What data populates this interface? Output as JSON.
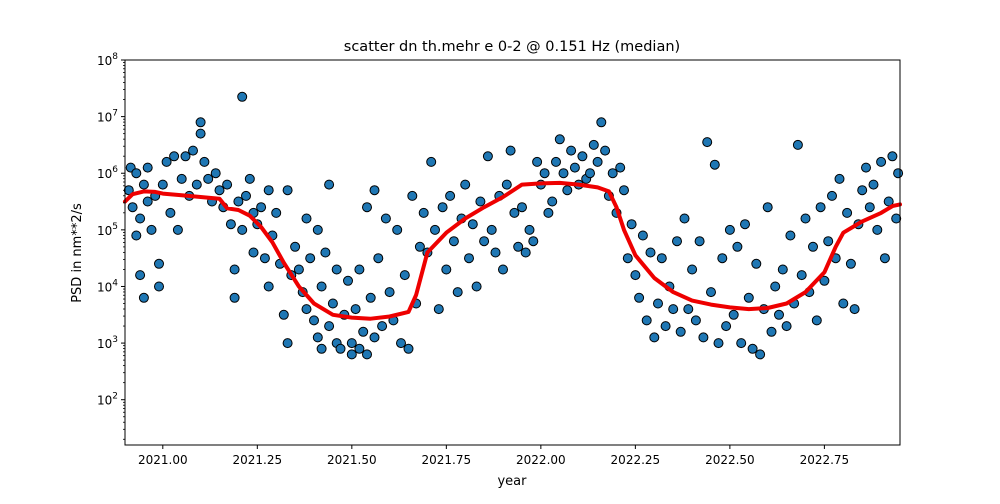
{
  "chart_data": {
    "type": "scatter",
    "title": "scatter dn th.mehr e 0-2 @ 0.151 Hz (median)",
    "xlabel": "year",
    "ylabel": "PSD in nm**2/s",
    "xlim": [
      2020.9,
      2022.95
    ],
    "ylim_log10": [
      1.2,
      8.0
    ],
    "y_scale": "log",
    "grid": false,
    "x_ticks": [
      2021.0,
      2021.25,
      2021.5,
      2021.75,
      2022.0,
      2022.25,
      2022.5,
      2022.75
    ],
    "x_tick_labels": [
      "2021.00",
      "2021.25",
      "2021.50",
      "2021.75",
      "2022.00",
      "2022.25",
      "2022.50",
      "2022.75"
    ],
    "y_tick_exponents": [
      2,
      3,
      4,
      5,
      6,
      7,
      8
    ],
    "y_tick_base": "10",
    "colors": {
      "points": "#1f77b4",
      "point_edge": "#000000",
      "median": "#ee0000"
    },
    "series": [
      {
        "kind": "scatter",
        "values": [
          [
            2020.91,
            5.7
          ],
          [
            2020.915,
            6.1
          ],
          [
            2020.92,
            5.4
          ],
          [
            2020.93,
            4.9
          ],
          [
            2020.93,
            6.0
          ],
          [
            2020.94,
            5.2
          ],
          [
            2020.94,
            4.2
          ],
          [
            2020.95,
            5.8
          ],
          [
            2020.95,
            3.8
          ],
          [
            2020.96,
            5.5
          ],
          [
            2020.96,
            6.1
          ],
          [
            2020.97,
            5.0
          ],
          [
            2020.98,
            5.6
          ],
          [
            2020.99,
            4.4
          ],
          [
            2020.99,
            4.0
          ],
          [
            2021.0,
            5.8
          ],
          [
            2021.01,
            6.2
          ],
          [
            2021.02,
            5.3
          ],
          [
            2021.03,
            6.3
          ],
          [
            2021.04,
            5.0
          ],
          [
            2021.05,
            5.9
          ],
          [
            2021.06,
            6.3
          ],
          [
            2021.07,
            5.6
          ],
          [
            2021.08,
            6.4
          ],
          [
            2021.09,
            5.8
          ],
          [
            2021.1,
            6.7
          ],
          [
            2021.1,
            6.9
          ],
          [
            2021.11,
            6.2
          ],
          [
            2021.12,
            5.9
          ],
          [
            2021.13,
            5.5
          ],
          [
            2021.14,
            6.0
          ],
          [
            2021.15,
            5.7
          ],
          [
            2021.16,
            5.4
          ],
          [
            2021.17,
            5.8
          ],
          [
            2021.18,
            5.1
          ],
          [
            2021.19,
            4.3
          ],
          [
            2021.19,
            3.8
          ],
          [
            2021.21,
            7.35
          ],
          [
            2021.2,
            5.5
          ],
          [
            2021.21,
            5.0
          ],
          [
            2021.22,
            5.6
          ],
          [
            2021.23,
            5.9
          ],
          [
            2021.24,
            5.3
          ],
          [
            2021.24,
            4.6
          ],
          [
            2021.25,
            5.1
          ],
          [
            2021.26,
            5.4
          ],
          [
            2021.27,
            4.5
          ],
          [
            2021.28,
            5.7
          ],
          [
            2021.28,
            4.0
          ],
          [
            2021.29,
            4.9
          ],
          [
            2021.3,
            5.3
          ],
          [
            2021.31,
            4.4
          ],
          [
            2021.32,
            3.5
          ],
          [
            2021.33,
            5.7
          ],
          [
            2021.33,
            3.0
          ],
          [
            2021.34,
            4.2
          ],
          [
            2021.35,
            4.7
          ],
          [
            2021.36,
            4.3
          ],
          [
            2021.37,
            3.9
          ],
          [
            2021.38,
            5.2
          ],
          [
            2021.38,
            3.6
          ],
          [
            2021.39,
            4.5
          ],
          [
            2021.4,
            3.4
          ],
          [
            2021.41,
            5.0
          ],
          [
            2021.41,
            3.1
          ],
          [
            2021.42,
            4.0
          ],
          [
            2021.42,
            2.9
          ],
          [
            2021.43,
            4.6
          ],
          [
            2021.44,
            3.3
          ],
          [
            2021.44,
            5.8
          ],
          [
            2021.45,
            3.7
          ],
          [
            2021.46,
            3.0
          ],
          [
            2021.46,
            4.3
          ],
          [
            2021.47,
            2.9
          ],
          [
            2021.48,
            3.5
          ],
          [
            2021.49,
            4.1
          ],
          [
            2021.5,
            3.0
          ],
          [
            2021.5,
            2.8
          ],
          [
            2021.51,
            3.6
          ],
          [
            2021.52,
            2.9
          ],
          [
            2021.52,
            4.3
          ],
          [
            2021.53,
            3.2
          ],
          [
            2021.54,
            5.4
          ],
          [
            2021.54,
            2.8
          ],
          [
            2021.55,
            3.8
          ],
          [
            2021.56,
            3.1
          ],
          [
            2021.56,
            5.7
          ],
          [
            2021.57,
            4.5
          ],
          [
            2021.58,
            3.3
          ],
          [
            2021.59,
            5.2
          ],
          [
            2021.6,
            3.9
          ],
          [
            2021.61,
            3.4
          ],
          [
            2021.62,
            5.0
          ],
          [
            2021.63,
            3.0
          ],
          [
            2021.64,
            4.2
          ],
          [
            2021.65,
            2.9
          ],
          [
            2021.66,
            5.6
          ],
          [
            2021.67,
            3.7
          ],
          [
            2021.68,
            4.7
          ],
          [
            2021.69,
            5.3
          ],
          [
            2021.7,
            4.6
          ],
          [
            2021.71,
            6.2
          ],
          [
            2021.72,
            5.0
          ],
          [
            2021.73,
            3.6
          ],
          [
            2021.74,
            5.4
          ],
          [
            2021.75,
            4.3
          ],
          [
            2021.76,
            5.6
          ],
          [
            2021.77,
            4.8
          ],
          [
            2021.78,
            3.9
          ],
          [
            2021.79,
            5.2
          ],
          [
            2021.8,
            5.8
          ],
          [
            2021.81,
            4.5
          ],
          [
            2021.82,
            5.1
          ],
          [
            2021.83,
            4.0
          ],
          [
            2021.84,
            5.5
          ],
          [
            2021.85,
            4.8
          ],
          [
            2021.86,
            6.3
          ],
          [
            2021.87,
            5.0
          ],
          [
            2021.88,
            4.6
          ],
          [
            2021.89,
            5.6
          ],
          [
            2021.9,
            4.3
          ],
          [
            2021.91,
            5.8
          ],
          [
            2021.92,
            6.4
          ],
          [
            2021.93,
            5.3
          ],
          [
            2021.94,
            4.7
          ],
          [
            2021.95,
            5.4
          ],
          [
            2021.96,
            4.6
          ],
          [
            2021.97,
            5.0
          ],
          [
            2021.98,
            4.8
          ],
          [
            2021.99,
            6.2
          ],
          [
            2022.0,
            5.8
          ],
          [
            2022.01,
            6.0
          ],
          [
            2022.02,
            5.3
          ],
          [
            2022.03,
            5.5
          ],
          [
            2022.04,
            6.2
          ],
          [
            2022.05,
            6.6
          ],
          [
            2022.06,
            6.0
          ],
          [
            2022.07,
            5.7
          ],
          [
            2022.08,
            6.4
          ],
          [
            2022.09,
            6.1
          ],
          [
            2022.1,
            5.8
          ],
          [
            2022.11,
            6.3
          ],
          [
            2022.12,
            5.9
          ],
          [
            2022.13,
            6.0
          ],
          [
            2022.14,
            6.5
          ],
          [
            2022.15,
            6.2
          ],
          [
            2022.16,
            6.9
          ],
          [
            2022.17,
            6.4
          ],
          [
            2022.18,
            5.6
          ],
          [
            2022.19,
            6.0
          ],
          [
            2022.2,
            5.3
          ],
          [
            2022.21,
            6.1
          ],
          [
            2022.22,
            5.7
          ],
          [
            2022.23,
            4.5
          ],
          [
            2022.24,
            5.1
          ],
          [
            2022.25,
            4.2
          ],
          [
            2022.26,
            3.8
          ],
          [
            2022.27,
            4.9
          ],
          [
            2022.28,
            3.4
          ],
          [
            2022.29,
            4.6
          ],
          [
            2022.3,
            3.1
          ],
          [
            2022.31,
            3.7
          ],
          [
            2022.32,
            4.5
          ],
          [
            2022.33,
            3.3
          ],
          [
            2022.34,
            4.0
          ],
          [
            2022.35,
            3.6
          ],
          [
            2022.36,
            4.8
          ],
          [
            2022.37,
            3.2
          ],
          [
            2022.38,
            5.2
          ],
          [
            2022.39,
            3.6
          ],
          [
            2022.4,
            4.3
          ],
          [
            2022.41,
            3.4
          ],
          [
            2022.42,
            4.8
          ],
          [
            2022.43,
            3.1
          ],
          [
            2022.44,
            6.55
          ],
          [
            2022.45,
            3.9
          ],
          [
            2022.46,
            6.15
          ],
          [
            2022.47,
            3.0
          ],
          [
            2022.48,
            4.5
          ],
          [
            2022.49,
            3.3
          ],
          [
            2022.5,
            5.0
          ],
          [
            2022.51,
            3.5
          ],
          [
            2022.52,
            4.7
          ],
          [
            2022.53,
            3.0
          ],
          [
            2022.54,
            5.1
          ],
          [
            2022.55,
            3.8
          ],
          [
            2022.56,
            2.9
          ],
          [
            2022.57,
            4.4
          ],
          [
            2022.58,
            2.8
          ],
          [
            2022.59,
            3.6
          ],
          [
            2022.6,
            5.4
          ],
          [
            2022.61,
            3.2
          ],
          [
            2022.62,
            4.0
          ],
          [
            2022.63,
            3.5
          ],
          [
            2022.64,
            4.3
          ],
          [
            2022.65,
            3.3
          ],
          [
            2022.66,
            4.9
          ],
          [
            2022.67,
            3.7
          ],
          [
            2022.68,
            6.5
          ],
          [
            2022.69,
            4.2
          ],
          [
            2022.7,
            5.2
          ],
          [
            2022.71,
            3.9
          ],
          [
            2022.72,
            4.7
          ],
          [
            2022.73,
            3.4
          ],
          [
            2022.74,
            5.4
          ],
          [
            2022.75,
            4.1
          ],
          [
            2022.76,
            4.8
          ],
          [
            2022.77,
            5.6
          ],
          [
            2022.78,
            4.5
          ],
          [
            2022.79,
            5.9
          ],
          [
            2022.8,
            3.7
          ],
          [
            2022.81,
            5.3
          ],
          [
            2022.82,
            4.4
          ],
          [
            2022.83,
            3.6
          ],
          [
            2022.84,
            5.1
          ],
          [
            2022.85,
            5.7
          ],
          [
            2022.86,
            6.1
          ],
          [
            2022.87,
            5.4
          ],
          [
            2022.88,
            5.8
          ],
          [
            2022.89,
            5.0
          ],
          [
            2022.9,
            6.2
          ],
          [
            2022.91,
            4.5
          ],
          [
            2022.92,
            5.5
          ],
          [
            2022.93,
            6.3
          ],
          [
            2022.94,
            5.2
          ],
          [
            2022.945,
            6.0
          ]
        ]
      },
      {
        "kind": "line",
        "values": [
          [
            2020.9,
            5.5
          ],
          [
            2020.92,
            5.63
          ],
          [
            2020.95,
            5.68
          ],
          [
            2020.98,
            5.67
          ],
          [
            2021.0,
            5.64
          ],
          [
            2021.05,
            5.61
          ],
          [
            2021.1,
            5.58
          ],
          [
            2021.15,
            5.55
          ],
          [
            2021.17,
            5.38
          ],
          [
            2021.2,
            5.35
          ],
          [
            2021.23,
            5.25
          ],
          [
            2021.26,
            5.05
          ],
          [
            2021.29,
            4.78
          ],
          [
            2021.32,
            4.42
          ],
          [
            2021.36,
            4.0
          ],
          [
            2021.4,
            3.7
          ],
          [
            2021.45,
            3.5
          ],
          [
            2021.5,
            3.45
          ],
          [
            2021.55,
            3.43
          ],
          [
            2021.6,
            3.47
          ],
          [
            2021.65,
            3.55
          ],
          [
            2021.67,
            3.85
          ],
          [
            2021.7,
            4.6
          ],
          [
            2021.75,
            4.95
          ],
          [
            2021.8,
            5.2
          ],
          [
            2021.85,
            5.4
          ],
          [
            2021.9,
            5.58
          ],
          [
            2021.95,
            5.8
          ],
          [
            2022.0,
            5.82
          ],
          [
            2022.05,
            5.83
          ],
          [
            2022.1,
            5.8
          ],
          [
            2022.15,
            5.75
          ],
          [
            2022.18,
            5.68
          ],
          [
            2022.2,
            5.4
          ],
          [
            2022.22,
            5.0
          ],
          [
            2022.25,
            4.55
          ],
          [
            2022.3,
            4.15
          ],
          [
            2022.35,
            3.9
          ],
          [
            2022.4,
            3.75
          ],
          [
            2022.45,
            3.68
          ],
          [
            2022.5,
            3.63
          ],
          [
            2022.55,
            3.6
          ],
          [
            2022.6,
            3.62
          ],
          [
            2022.65,
            3.7
          ],
          [
            2022.7,
            3.9
          ],
          [
            2022.75,
            4.25
          ],
          [
            2022.78,
            4.7
          ],
          [
            2022.8,
            4.95
          ],
          [
            2022.85,
            5.15
          ],
          [
            2022.9,
            5.3
          ],
          [
            2022.93,
            5.42
          ],
          [
            2022.95,
            5.45
          ]
        ]
      }
    ]
  }
}
